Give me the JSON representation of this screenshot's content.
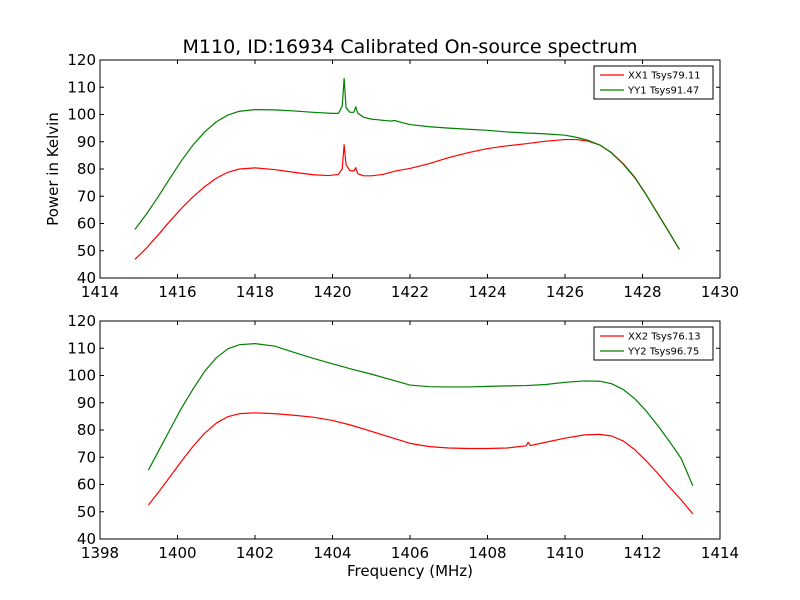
{
  "figure": {
    "title": "M110, ID:16934 Calibrated On-source spectrum"
  },
  "chart_data": [
    {
      "type": "line",
      "xlabel": "",
      "ylabel": "Power in Kelvin",
      "xlim": [
        1414,
        1430
      ],
      "ylim": [
        40,
        120
      ],
      "xticks": [
        1414,
        1416,
        1418,
        1420,
        1422,
        1424,
        1426,
        1428,
        1430
      ],
      "yticks": [
        40,
        50,
        60,
        70,
        80,
        90,
        100,
        110,
        120
      ],
      "legend_position": "top-right",
      "series": [
        {
          "name": "XX1 Tsys79.11",
          "color": "#ff0000",
          "x": [
            1414.9,
            1415.2,
            1415.5,
            1415.8,
            1416.1,
            1416.4,
            1416.7,
            1417.0,
            1417.3,
            1417.6,
            1418.0,
            1418.5,
            1419.0,
            1419.5,
            1419.9,
            1420.15,
            1420.25,
            1420.3,
            1420.35,
            1420.45,
            1420.55,
            1420.6,
            1420.65,
            1420.8,
            1421.0,
            1421.3,
            1421.6,
            1422.0,
            1422.5,
            1423.0,
            1423.5,
            1424.0,
            1424.5,
            1425.0,
            1425.5,
            1426.0,
            1426.3,
            1426.6,
            1426.9,
            1427.2,
            1427.5,
            1427.8,
            1428.1,
            1428.4,
            1428.7,
            1428.95
          ],
          "y": [
            46.8,
            51,
            55.8,
            60.8,
            65.5,
            69.8,
            73.5,
            76.6,
            78.8,
            80,
            80.4,
            79.8,
            78.8,
            77.9,
            77.6,
            78,
            80,
            88.9,
            81.5,
            79.4,
            79.3,
            80.5,
            78.3,
            77.5,
            77.5,
            78,
            79.2,
            80.2,
            82,
            84.2,
            86,
            87.5,
            88.5,
            89.3,
            90.2,
            90.8,
            90.8,
            90.2,
            88.8,
            86,
            82,
            77,
            70.5,
            63.5,
            56.5,
            50.5
          ]
        },
        {
          "name": "YY1 Tsys91.47",
          "color": "#008000",
          "x": [
            1414.9,
            1415.2,
            1415.5,
            1415.8,
            1416.1,
            1416.4,
            1416.7,
            1417.0,
            1417.3,
            1417.6,
            1418.0,
            1418.5,
            1419.0,
            1419.5,
            1420.0,
            1420.15,
            1420.25,
            1420.3,
            1420.35,
            1420.45,
            1420.55,
            1420.6,
            1420.65,
            1420.8,
            1421.0,
            1421.5,
            1421.6,
            1421.8,
            1422.0,
            1422.5,
            1423.0,
            1423.5,
            1424.0,
            1424.5,
            1425.0,
            1425.5,
            1426.0,
            1426.3,
            1426.6,
            1426.9,
            1427.2,
            1427.5,
            1427.8,
            1428.1,
            1428.4,
            1428.7,
            1428.95
          ],
          "y": [
            57.8,
            63.5,
            69.8,
            76.5,
            83,
            88.8,
            93.6,
            97.3,
            99.8,
            101.2,
            101.8,
            101.7,
            101.3,
            100.8,
            100.4,
            100.4,
            103,
            113.2,
            102.5,
            100.8,
            100.8,
            102.8,
            100.5,
            99,
            98.3,
            97.6,
            97.8,
            97,
            96.3,
            95.5,
            95,
            94.6,
            94.2,
            93.6,
            93.2,
            92.9,
            92.4,
            91.6,
            90.5,
            88.8,
            85.9,
            81.8,
            76.8,
            70.4,
            63.4,
            56.4,
            50.6
          ]
        }
      ]
    },
    {
      "type": "line",
      "xlabel": "Frequency (MHz)",
      "ylabel": "",
      "xlim": [
        1398,
        1414
      ],
      "ylim": [
        40,
        120
      ],
      "xticks": [
        1398,
        1400,
        1402,
        1404,
        1406,
        1408,
        1410,
        1412,
        1414
      ],
      "yticks": [
        40,
        50,
        60,
        70,
        80,
        90,
        100,
        110,
        120
      ],
      "legend_position": "top-right",
      "series": [
        {
          "name": "XX2 Tsys76.13",
          "color": "#ff0000",
          "x": [
            1399.25,
            1399.5,
            1399.8,
            1400.1,
            1400.4,
            1400.7,
            1401.0,
            1401.3,
            1401.6,
            1402.0,
            1402.5,
            1403.0,
            1403.5,
            1404.0,
            1404.5,
            1405.0,
            1405.5,
            1406.0,
            1406.5,
            1407.0,
            1407.5,
            1408.0,
            1408.5,
            1409.0,
            1409.05,
            1409.1,
            1409.5,
            1410.0,
            1410.5,
            1410.9,
            1411.2,
            1411.5,
            1411.8,
            1412.1,
            1412.4,
            1412.7,
            1413.0,
            1413.3
          ],
          "y": [
            52.5,
            57,
            62.7,
            68.5,
            74,
            78.8,
            82.5,
            84.9,
            86,
            86.3,
            86,
            85.4,
            84.7,
            83.5,
            81.7,
            79.5,
            77.3,
            75.1,
            73.9,
            73.4,
            73.2,
            73.2,
            73.4,
            74.2,
            75.5,
            74.3,
            75.5,
            77,
            78.2,
            78.4,
            77.8,
            76,
            72.8,
            68.6,
            64,
            59,
            54.3,
            49.2
          ]
        },
        {
          "name": "YY2 Tsys96.75",
          "color": "#008000",
          "x": [
            1399.25,
            1399.5,
            1399.8,
            1400.1,
            1400.4,
            1400.7,
            1401.0,
            1401.3,
            1401.6,
            1402.0,
            1402.5,
            1403.0,
            1403.5,
            1404.0,
            1404.5,
            1405.0,
            1405.5,
            1406.0,
            1406.5,
            1407.0,
            1407.5,
            1408.0,
            1408.5,
            1409.0,
            1409.5,
            1410.0,
            1410.5,
            1410.9,
            1411.2,
            1411.5,
            1411.8,
            1412.1,
            1412.4,
            1412.7,
            1413.0,
            1413.3
          ],
          "y": [
            65.3,
            72,
            80,
            88,
            95,
            101.5,
            106.5,
            109.8,
            111.3,
            111.7,
            110.8,
            108.5,
            106.3,
            104.3,
            102.3,
            100.5,
            98.5,
            96.5,
            95.9,
            95.8,
            95.8,
            96,
            96.2,
            96.3,
            96.7,
            97.5,
            98,
            97.9,
            97,
            94.9,
            91.5,
            86.9,
            81.5,
            75.7,
            69.5,
            59.5
          ]
        }
      ]
    }
  ]
}
